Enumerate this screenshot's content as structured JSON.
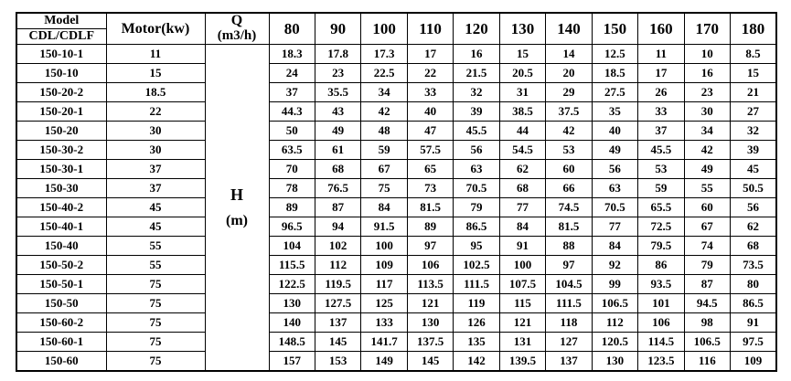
{
  "table": {
    "header": {
      "model_top": "Model",
      "model_bottom": "CDL/CDLF",
      "motor": "Motor(kw)",
      "q_line1": "Q",
      "q_line2": "(m3/h)",
      "h_line1": "H",
      "h_line2": "(m)",
      "flow_columns": [
        "80",
        "90",
        "100",
        "110",
        "120",
        "130",
        "140",
        "150",
        "160",
        "170",
        "180"
      ]
    },
    "rows": [
      {
        "model": "150-10-1",
        "motor": "11",
        "values": [
          "18.3",
          "17.8",
          "17.3",
          "17",
          "16",
          "15",
          "14",
          "12.5",
          "11",
          "10",
          "8.5"
        ]
      },
      {
        "model": "150-10",
        "motor": "15",
        "values": [
          "24",
          "23",
          "22.5",
          "22",
          "21.5",
          "20.5",
          "20",
          "18.5",
          "17",
          "16",
          "15"
        ]
      },
      {
        "model": "150-20-2",
        "motor": "18.5",
        "values": [
          "37",
          "35.5",
          "34",
          "33",
          "32",
          "31",
          "29",
          "27.5",
          "26",
          "23",
          "21"
        ]
      },
      {
        "model": "150-20-1",
        "motor": "22",
        "values": [
          "44.3",
          "43",
          "42",
          "40",
          "39",
          "38.5",
          "37.5",
          "35",
          "33",
          "30",
          "27"
        ]
      },
      {
        "model": "150-20",
        "motor": "30",
        "values": [
          "50",
          "49",
          "48",
          "47",
          "45.5",
          "44",
          "42",
          "40",
          "37",
          "34",
          "32"
        ]
      },
      {
        "model": "150-30-2",
        "motor": "30",
        "values": [
          "63.5",
          "61",
          "59",
          "57.5",
          "56",
          "54.5",
          "53",
          "49",
          "45.5",
          "42",
          "39"
        ]
      },
      {
        "model": "150-30-1",
        "motor": "37",
        "values": [
          "70",
          "68",
          "67",
          "65",
          "63",
          "62",
          "60",
          "56",
          "53",
          "49",
          "45"
        ]
      },
      {
        "model": "150-30",
        "motor": "37",
        "values": [
          "78",
          "76.5",
          "75",
          "73",
          "70.5",
          "68",
          "66",
          "63",
          "59",
          "55",
          "50.5"
        ]
      },
      {
        "model": "150-40-2",
        "motor": "45",
        "values": [
          "89",
          "87",
          "84",
          "81.5",
          "79",
          "77",
          "74.5",
          "70.5",
          "65.5",
          "60",
          "56"
        ]
      },
      {
        "model": "150-40-1",
        "motor": "45",
        "values": [
          "96.5",
          "94",
          "91.5",
          "89",
          "86.5",
          "84",
          "81.5",
          "77",
          "72.5",
          "67",
          "62"
        ]
      },
      {
        "model": "150-40",
        "motor": "55",
        "values": [
          "104",
          "102",
          "100",
          "97",
          "95",
          "91",
          "88",
          "84",
          "79.5",
          "74",
          "68"
        ]
      },
      {
        "model": "150-50-2",
        "motor": "55",
        "values": [
          "115.5",
          "112",
          "109",
          "106",
          "102.5",
          "100",
          "97",
          "92",
          "86",
          "79",
          "73.5"
        ]
      },
      {
        "model": "150-50-1",
        "motor": "75",
        "values": [
          "122.5",
          "119.5",
          "117",
          "113.5",
          "111.5",
          "107.5",
          "104.5",
          "99",
          "93.5",
          "87",
          "80"
        ]
      },
      {
        "model": "150-50",
        "motor": "75",
        "values": [
          "130",
          "127.5",
          "125",
          "121",
          "119",
          "115",
          "111.5",
          "106.5",
          "101",
          "94.5",
          "86.5"
        ]
      },
      {
        "model": "150-60-2",
        "motor": "75",
        "values": [
          "140",
          "137",
          "133",
          "130",
          "126",
          "121",
          "118",
          "112",
          "106",
          "98",
          "91"
        ]
      },
      {
        "model": "150-60-1",
        "motor": "75",
        "values": [
          "148.5",
          "145",
          "141.7",
          "137.5",
          "135",
          "131",
          "127",
          "120.5",
          "114.5",
          "106.5",
          "97.5"
        ]
      },
      {
        "model": "150-60",
        "motor": "75",
        "values": [
          "157",
          "153",
          "149",
          "145",
          "142",
          "139.5",
          "137",
          "130",
          "123.5",
          "116",
          "109"
        ]
      }
    ]
  },
  "layout_columns": {
    "model_width": "98",
    "motor_width": "108",
    "qh_width": "70"
  },
  "colors": {
    "border": "#000000",
    "text": "#000000",
    "background": "#ffffff"
  }
}
